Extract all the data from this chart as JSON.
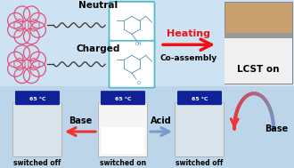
{
  "bg_top": "#cce0f0",
  "bg_bot": "#c0d8eb",
  "crown_color": "#e0507a",
  "box_color": "#55bbcc",
  "heating_color": "#ee1111",
  "coassembly_color": "#222222",
  "neutral_label": "Neutral",
  "charged_label": "Charged",
  "heating_label": "Heating",
  "coassembly_label": "Co-assembly",
  "lcst_label": "LCST on",
  "temp_label": "65 °C",
  "base1": "Base",
  "acid": "Acid",
  "base2": "Base",
  "sw_off1": "switched off",
  "sw_on": "switched on",
  "sw_off2": "switched off",
  "arrow_red": "#ee3333",
  "arrow_blue": "#7799cc",
  "label_fs": 6.5,
  "small_fs": 5.5
}
